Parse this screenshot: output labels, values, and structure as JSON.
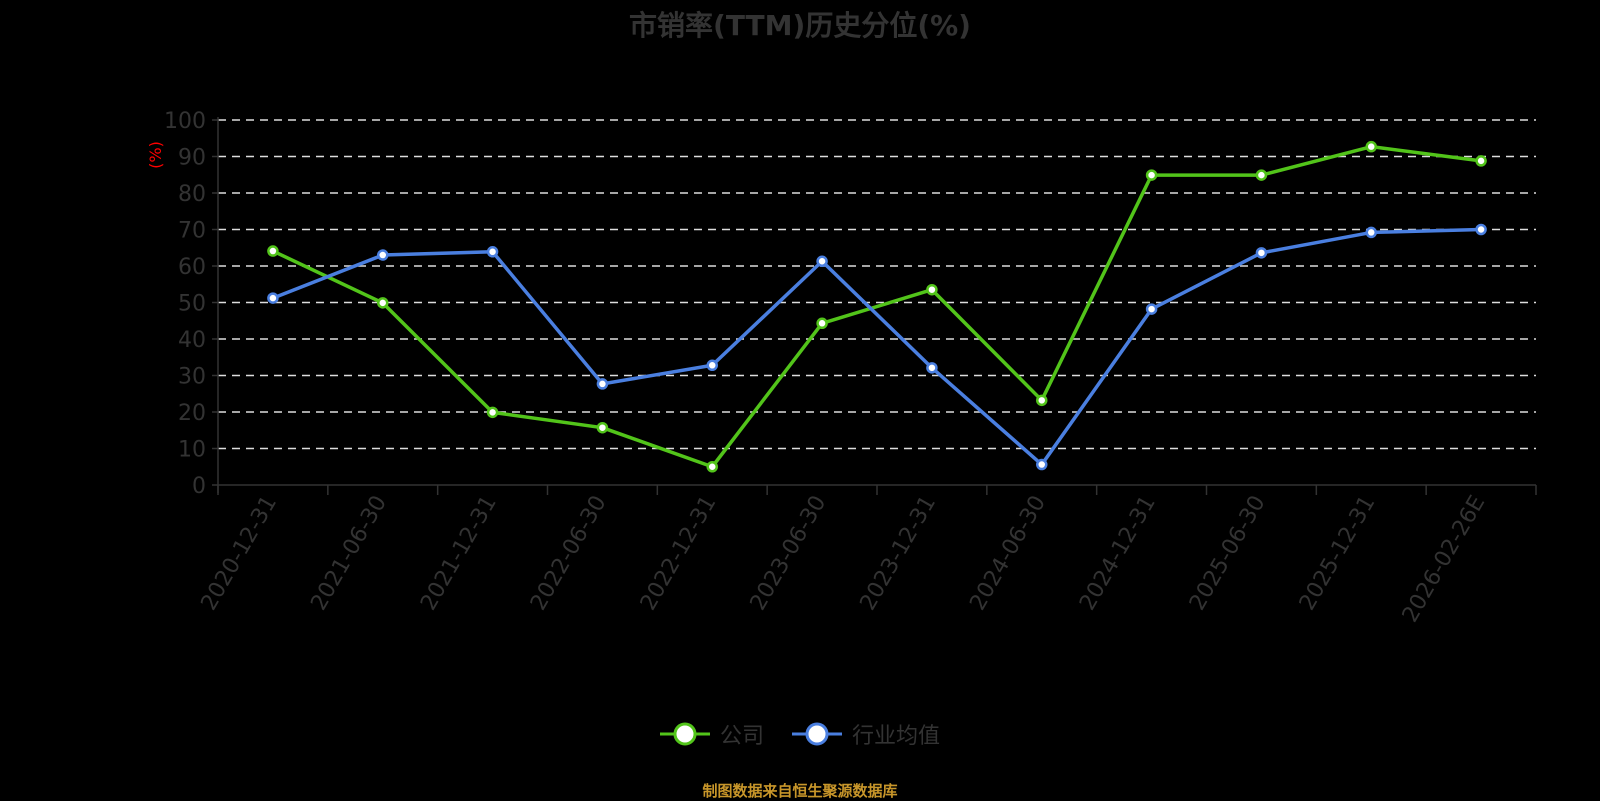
{
  "title": "市销率(TTM)历史分位(%)",
  "y_unit_label": "(%)",
  "legend": {
    "company": "公司",
    "industry": "行业均值"
  },
  "source": "制图数据来自恒生聚源数据库",
  "colors": {
    "company": "#52c41a",
    "industry": "#4a7fe0",
    "axis": "#333333",
    "grid": "#dddddd",
    "unit": "#ff0000",
    "source": "#c8962a"
  },
  "chart_data": {
    "type": "line",
    "title": "市销率(TTM)历史分位(%)",
    "xlabel": "",
    "ylabel": "(%)",
    "ylim": [
      0,
      100
    ],
    "yticks": [
      0,
      10,
      20,
      30,
      40,
      50,
      60,
      70,
      80,
      90,
      100
    ],
    "grid": true,
    "legend_position": "bottom",
    "categories": [
      "2020-12-31",
      "2021-06-30",
      "2021-12-31",
      "2022-06-30",
      "2022-12-31",
      "2023-06-30",
      "2023-12-31",
      "2024-06-30",
      "2024-12-31",
      "2025-06-30",
      "2025-12-31",
      "2026-02-26E"
    ],
    "series": [
      {
        "name": "公司",
        "values": [
          64.1,
          49.9,
          19.9,
          15.7,
          5.0,
          44.3,
          53.5,
          23.2,
          84.9,
          84.9,
          92.7,
          88.8
        ]
      },
      {
        "name": "行业均值",
        "values": [
          51.2,
          63.0,
          63.9,
          27.7,
          32.8,
          61.3,
          32.1,
          5.6,
          48.2,
          63.6,
          69.2,
          70.0
        ]
      }
    ]
  }
}
